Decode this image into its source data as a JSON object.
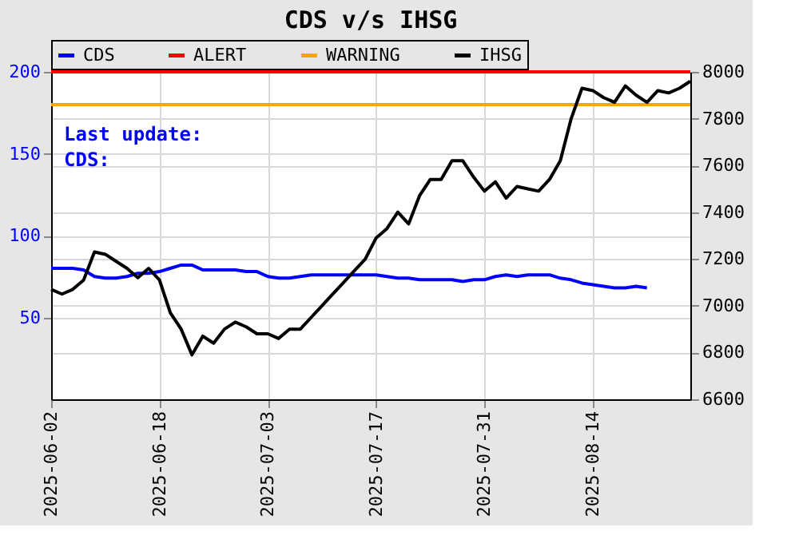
{
  "chart_data": {
    "type": "line",
    "title": "CDS v/s IHSG",
    "categories": [
      "2025-06-02",
      null,
      null,
      null,
      null,
      null,
      null,
      null,
      null,
      null,
      "2025-06-18",
      null,
      null,
      null,
      null,
      null,
      null,
      null,
      null,
      null,
      "2025-07-03",
      null,
      null,
      null,
      null,
      null,
      null,
      null,
      null,
      null,
      "2025-07-17",
      null,
      null,
      null,
      null,
      null,
      null,
      null,
      null,
      null,
      "2025-07-31",
      null,
      null,
      null,
      null,
      null,
      null,
      null,
      null,
      null,
      "2025-08-14",
      null,
      null,
      null,
      null,
      null,
      null,
      null,
      null,
      null
    ],
    "series": [
      {
        "name": "CDS",
        "color": "#0000ff",
        "values": [
          80,
          80,
          80,
          79,
          75,
          74,
          74,
          75,
          77,
          77,
          78,
          80,
          82,
          82,
          79,
          79,
          79,
          79,
          78,
          78,
          75,
          74,
          74,
          75,
          76,
          76,
          76,
          76,
          76,
          76,
          76,
          75,
          74,
          74,
          73,
          73,
          73,
          73,
          72,
          73,
          73,
          75,
          76,
          75,
          76,
          76,
          76,
          74,
          73,
          71,
          70,
          69,
          68,
          68,
          69,
          68,
          null,
          null,
          null,
          null
        ]
      },
      {
        "name": "IHSG",
        "color": "#000000",
        "axis": "y2",
        "values": [
          7070,
          7050,
          7070,
          7110,
          7230,
          7220,
          7190,
          7160,
          7120,
          7160,
          7110,
          6970,
          6900,
          6790,
          6870,
          6840,
          6900,
          6930,
          6910,
          6880,
          6880,
          6860,
          6900,
          6900,
          6950,
          7000,
          7050,
          7100,
          7150,
          7200,
          7290,
          7330,
          7400,
          7350,
          7470,
          7540,
          7540,
          7620,
          7620,
          7550,
          7490,
          7530,
          7460,
          7510,
          7500,
          7490,
          7540,
          7620,
          7800,
          7930,
          7920,
          7890,
          7870,
          7940,
          7900,
          7870,
          7920,
          7910,
          7930,
          7960
        ]
      }
    ],
    "ylim": [
      0,
      200
    ],
    "yticks": [
      50,
      100,
      150,
      200
    ],
    "y2lim": [
      6600,
      8000
    ],
    "y2ticks": [
      6600,
      6800,
      7000,
      7200,
      7400,
      7600,
      7800,
      8000
    ],
    "ref_lines": [
      {
        "axis": "y",
        "value": 200,
        "label": "ALERT",
        "color": "#ff0000"
      },
      {
        "axis": "y",
        "value": 180,
        "label": "WARNING",
        "color": "#ffa500"
      }
    ],
    "annotations": [
      "Last update:",
      "CDS:"
    ],
    "grid": true,
    "legend": "top",
    "marker": "none",
    "line_style": "solid"
  }
}
